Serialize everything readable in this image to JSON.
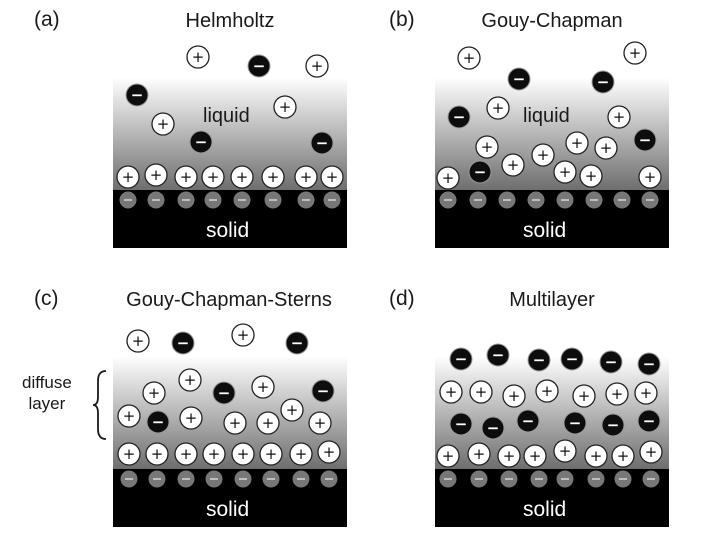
{
  "panels": [
    {
      "letter": "(a)",
      "title": "Helmholtz",
      "liquid_label": "liquid",
      "solid_label": "solid",
      "model": "helmholtz"
    },
    {
      "letter": "(b)",
      "title": "Gouy-Chapman",
      "liquid_label": "liquid",
      "solid_label": "solid",
      "model": "gouy-chapman"
    },
    {
      "letter": "(c)",
      "title": "Gouy-Chapman-Sterns",
      "liquid_label": "",
      "solid_label": "solid",
      "model": "gouy-chapman-sterns"
    },
    {
      "letter": "(d)",
      "title": "Multilayer",
      "liquid_label": "",
      "solid_label": "solid",
      "model": "multilayer"
    }
  ],
  "annotation": {
    "line1": "diffuse",
    "line2": "layer"
  },
  "ion_symbols": {
    "positive": "+",
    "negative": "−"
  },
  "colors": {
    "solid": "#000000",
    "surface_charge": "#777777",
    "gradient_top": "#ffffff",
    "gradient_bottom": "#6e6e6e",
    "negative_ion": "#0d0d0d"
  }
}
